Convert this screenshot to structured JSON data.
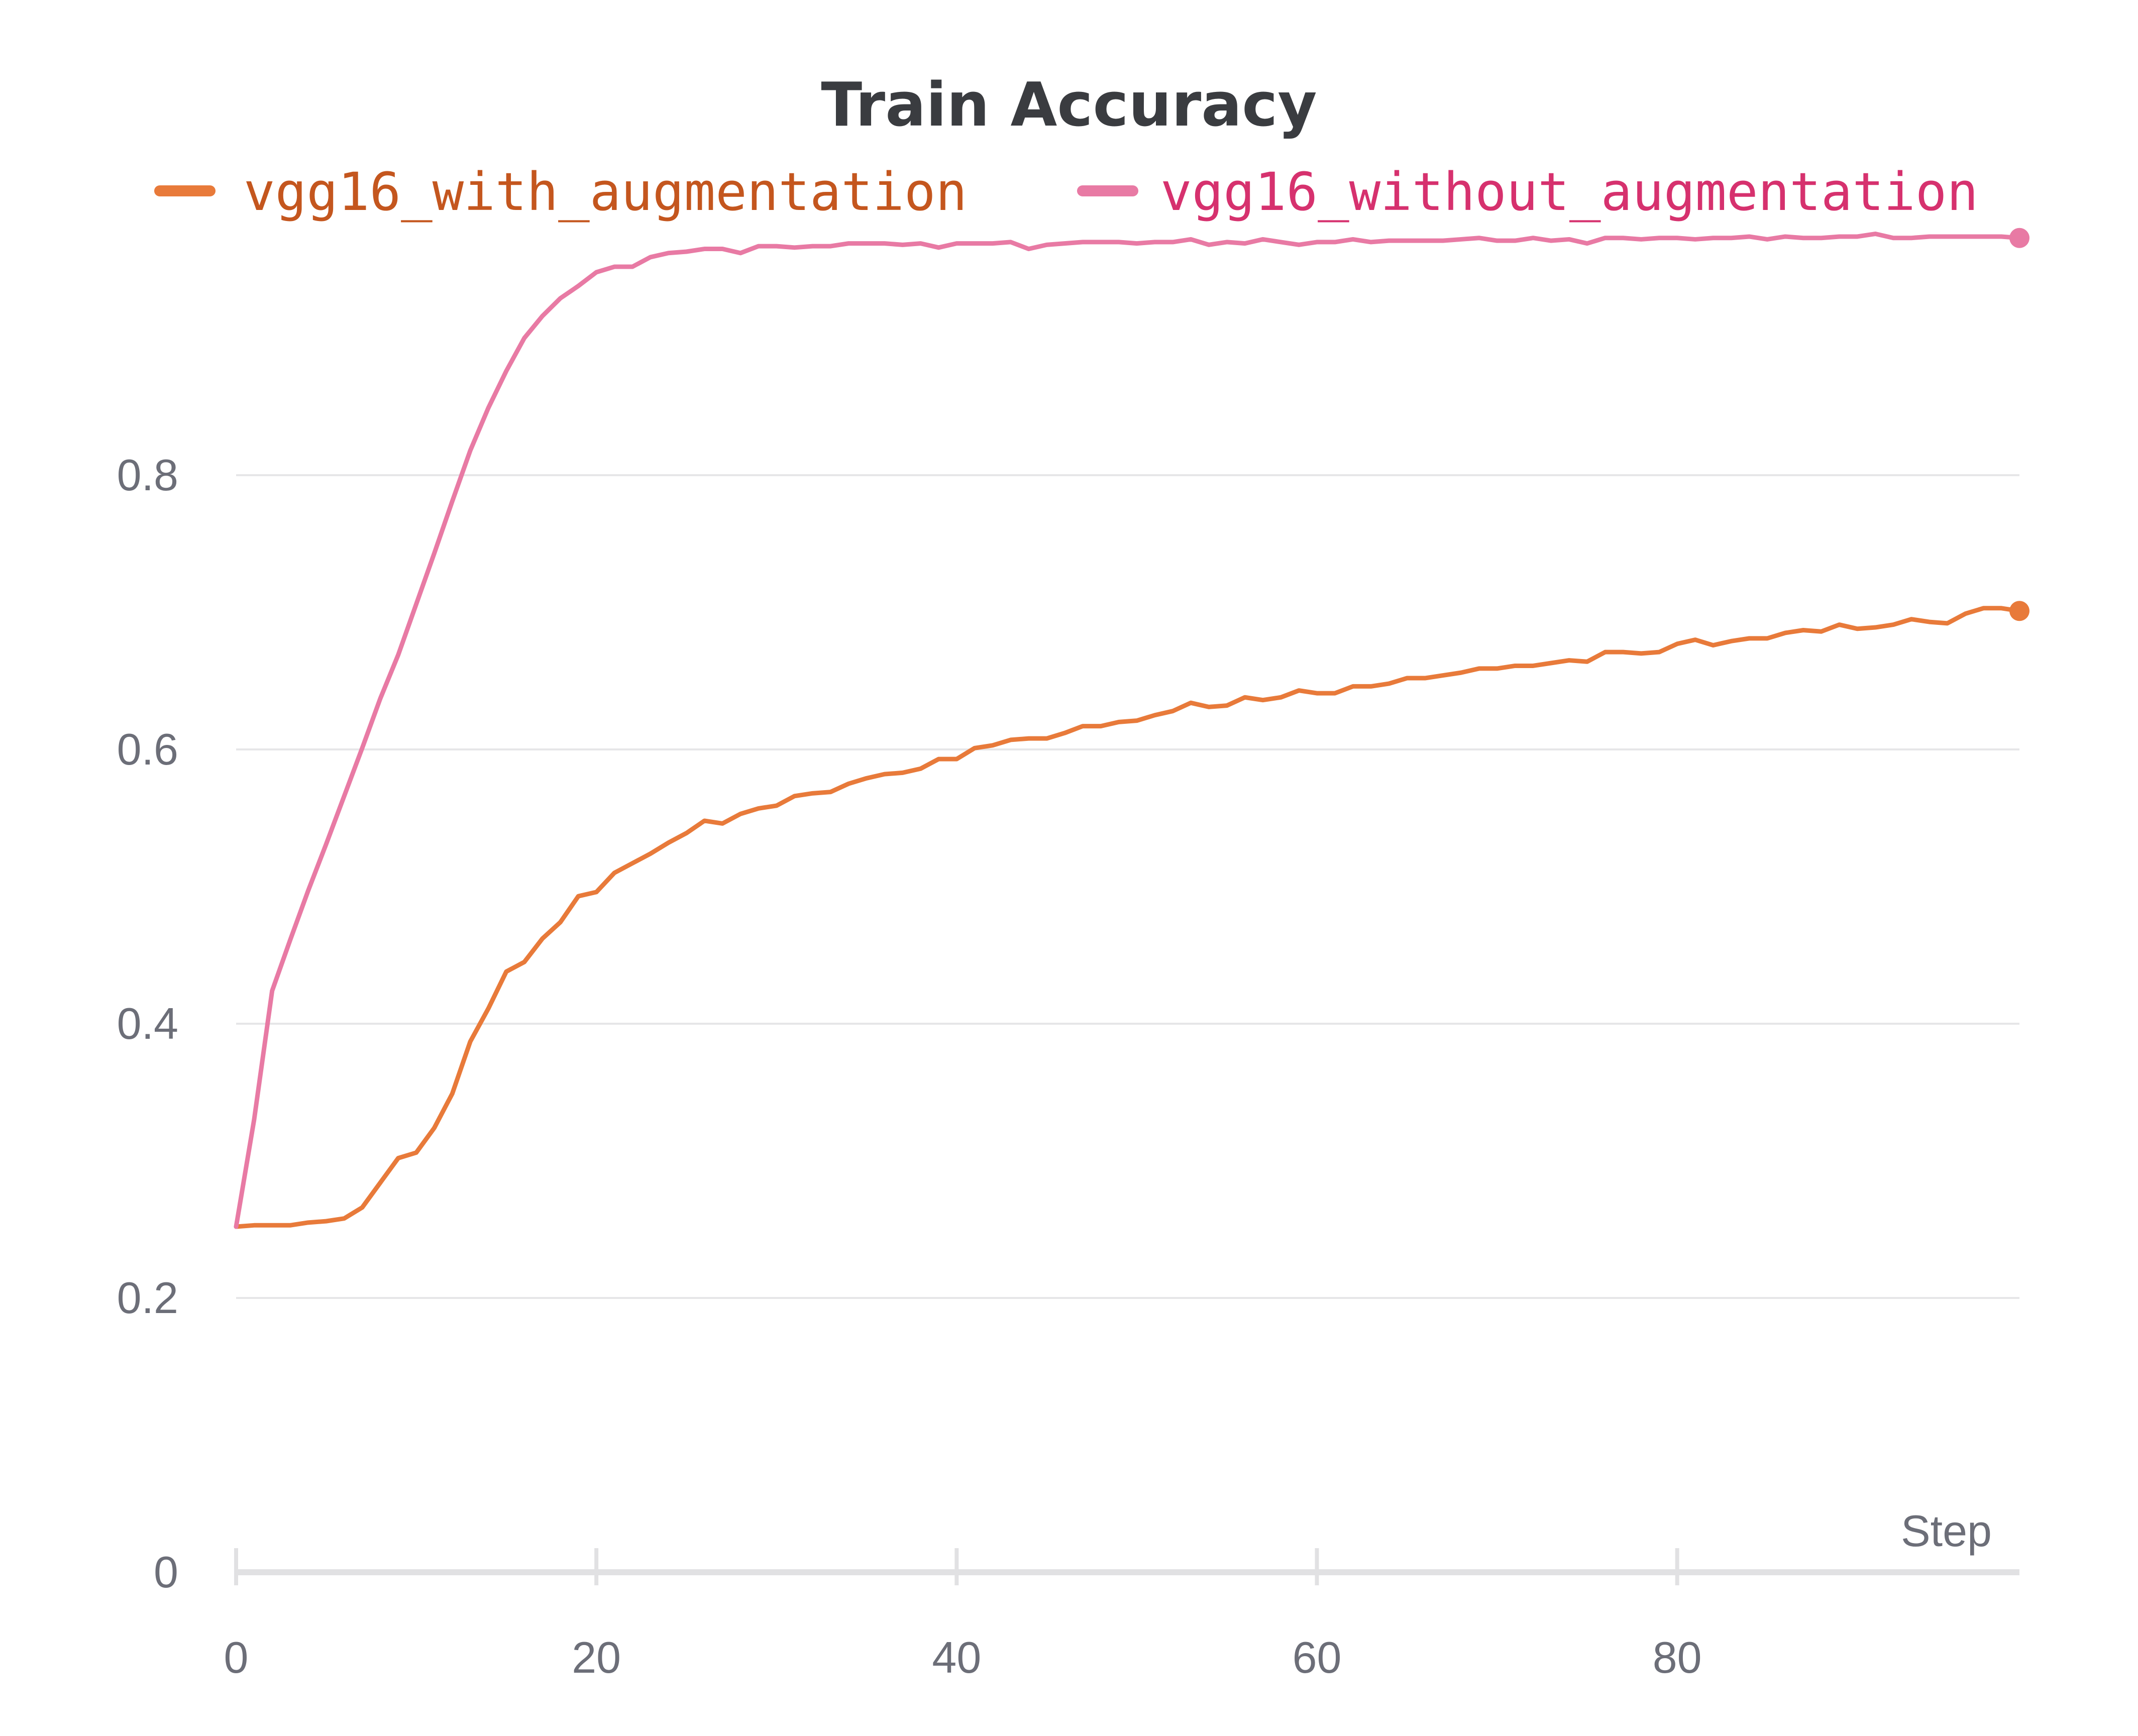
{
  "chart_data": {
    "type": "line",
    "title": "Train Accuracy",
    "xlabel": "Step",
    "ylabel": "",
    "xlim": [
      0,
      99
    ],
    "ylim": [
      0,
      1.0
    ],
    "x_ticks": [
      0,
      20,
      40,
      60,
      80
    ],
    "x_tick_labels": [
      "0",
      "20",
      "40",
      "60",
      "80"
    ],
    "y_ticks": [
      0,
      0.2,
      0.4,
      0.6,
      0.8
    ],
    "y_tick_labels": [
      "0",
      "0.2",
      "0.4",
      "0.6",
      "0.8"
    ],
    "grid": true,
    "legend_position": "top",
    "series": [
      {
        "name": "vgg16_with_augmentation",
        "color": "#e87a3a",
        "label_color": "#c4561e",
        "values": [
          0.252,
          0.253,
          0.253,
          0.253,
          0.255,
          0.256,
          0.258,
          0.266,
          0.284,
          0.302,
          0.306,
          0.324,
          0.349,
          0.387,
          0.411,
          0.438,
          0.445,
          0.462,
          0.474,
          0.493,
          0.496,
          0.51,
          0.517,
          0.524,
          0.532,
          0.539,
          0.548,
          0.546,
          0.553,
          0.557,
          0.559,
          0.566,
          0.568,
          0.569,
          0.575,
          0.579,
          0.582,
          0.583,
          0.586,
          0.593,
          0.593,
          0.601,
          0.603,
          0.607,
          0.608,
          0.608,
          0.612,
          0.617,
          0.617,
          0.62,
          0.621,
          0.625,
          0.628,
          0.634,
          0.631,
          0.632,
          0.638,
          0.636,
          0.638,
          0.643,
          0.641,
          0.641,
          0.646,
          0.646,
          0.648,
          0.652,
          0.652,
          0.654,
          0.656,
          0.659,
          0.659,
          0.661,
          0.661,
          0.663,
          0.665,
          0.664,
          0.671,
          0.671,
          0.67,
          0.671,
          0.677,
          0.68,
          0.676,
          0.679,
          0.681,
          0.681,
          0.685,
          0.687,
          0.686,
          0.691,
          0.688,
          0.689,
          0.691,
          0.695,
          0.693,
          0.692,
          0.699,
          0.703,
          0.703,
          0.701
        ]
      },
      {
        "name": "vgg16_without_augmentation",
        "color": "#e87aa4",
        "label_color": "#d6316e",
        "values": [
          0.252,
          0.33,
          0.424,
          0.461,
          0.497,
          0.531,
          0.566,
          0.601,
          0.637,
          0.669,
          0.706,
          0.743,
          0.781,
          0.818,
          0.849,
          0.876,
          0.9,
          0.916,
          0.929,
          0.938,
          0.948,
          0.952,
          0.952,
          0.959,
          0.962,
          0.963,
          0.965,
          0.965,
          0.962,
          0.967,
          0.967,
          0.966,
          0.967,
          0.967,
          0.969,
          0.969,
          0.969,
          0.968,
          0.969,
          0.966,
          0.969,
          0.969,
          0.969,
          0.97,
          0.965,
          0.968,
          0.969,
          0.97,
          0.97,
          0.97,
          0.969,
          0.97,
          0.97,
          0.972,
          0.968,
          0.97,
          0.969,
          0.972,
          0.97,
          0.968,
          0.97,
          0.97,
          0.972,
          0.97,
          0.971,
          0.971,
          0.971,
          0.971,
          0.972,
          0.973,
          0.971,
          0.971,
          0.973,
          0.971,
          0.972,
          0.969,
          0.973,
          0.973,
          0.972,
          0.973,
          0.973,
          0.972,
          0.973,
          0.973,
          0.974,
          0.972,
          0.974,
          0.973,
          0.973,
          0.974,
          0.974,
          0.976,
          0.973,
          0.973,
          0.974,
          0.974,
          0.974,
          0.974,
          0.974,
          0.973
        ]
      }
    ]
  }
}
